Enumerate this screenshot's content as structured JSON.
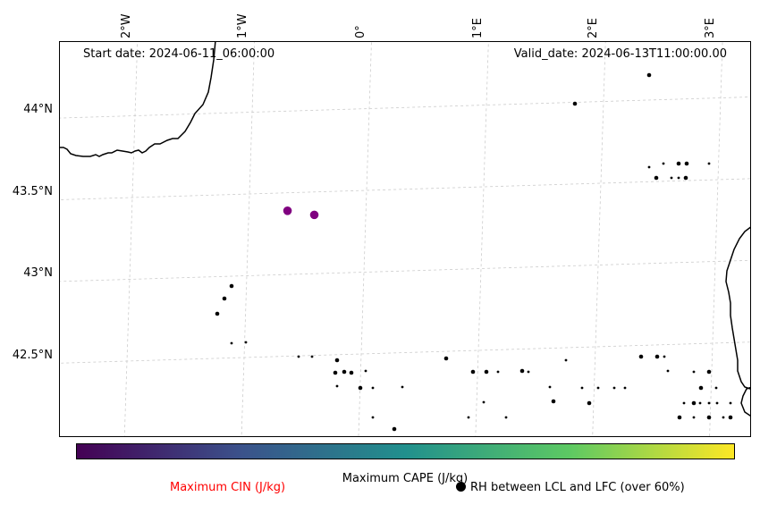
{
  "map": {
    "start_date": "Start date: 2024-06-11_06:00:00",
    "valid_date": "Valid_date: 2024-06-13T11:00:00.00",
    "lat_labels": [
      "44°N",
      "43.5°N",
      "43°N",
      "42.5°N"
    ],
    "lon_labels": [
      "2°W",
      "1°W",
      "0°",
      "1°E",
      "2°E",
      "3°E"
    ],
    "highlight_points": [
      {
        "lon": -0.67,
        "lat": 43.39
      },
      {
        "lon": -0.44,
        "lat": 43.36
      }
    ],
    "marker_color": "#800080",
    "coast_color": "#000000",
    "grid": "dashed light gray"
  },
  "colorbar": {
    "label": "Maximum CAPE (J/kg)",
    "colormap": "viridis",
    "stops": [
      "#440154",
      "#3b528b",
      "#21908d",
      "#5dc963",
      "#fde725"
    ]
  },
  "legend": {
    "cin_label": "Maximum CIN (J/kg)",
    "cin_color": "#ff0000",
    "rh_label": "RH between LCL and LFC (over 60%)",
    "rh_marker": "filled-circle-icon"
  }
}
